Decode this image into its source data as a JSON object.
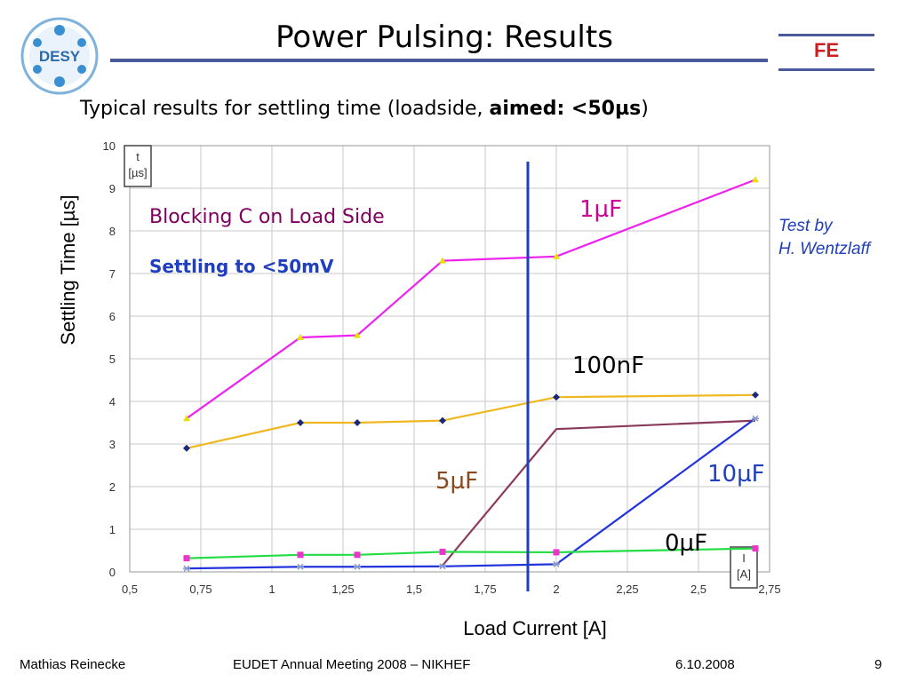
{
  "slide": {
    "title": "Power Pulsing: Results",
    "subtitle_prefix": "Typical results for settling time (loadside, ",
    "subtitle_bold": "aimed: <50µs",
    "subtitle_suffix": ")",
    "logo_text": "DESY",
    "badge_text": "FE",
    "note_blocking": "Blocking C on Load Side",
    "note_settling": "Settling to <50mV",
    "test_by_line1": "Test by",
    "test_by_line2": "H. Wentzlaff",
    "footer_author": "Mathias Reinecke",
    "footer_event": "EUDET Annual Meeting 2008 – NIKHEF",
    "footer_date": "6.10.2008",
    "footer_page": "9"
  },
  "colors": {
    "rule": "#4a5a9a",
    "grid": "#c8c8c8",
    "vertical_marker": "#1f3fbf",
    "badge": "#cc1f1f"
  },
  "chart_data": {
    "type": "line",
    "xlabel": "Load Current [A]",
    "ylabel": "Settling Time [µs]",
    "x_unit_box": [
      "I",
      "[A]"
    ],
    "y_unit_box": [
      "t",
      "[µs]"
    ],
    "xlim": [
      0.5,
      2.75
    ],
    "ylim": [
      0,
      10
    ],
    "x_ticks": [
      "0,5",
      "0,75",
      "1",
      "1,25",
      "1,5",
      "1,75",
      "2",
      "2,25",
      "2,5",
      "2,75"
    ],
    "y_ticks": [
      "0",
      "1",
      "2",
      "3",
      "4",
      "5",
      "6",
      "7",
      "8",
      "9",
      "10"
    ],
    "grid": true,
    "vertical_marker_x": 1.9,
    "series": [
      {
        "name": "1µF",
        "color": "#ee22ee",
        "marker_color": "#e8e000",
        "marker": "triangle",
        "label_color": "#cc0099",
        "points": [
          [
            0.7,
            3.6
          ],
          [
            1.1,
            5.5
          ],
          [
            1.3,
            5.55
          ],
          [
            1.6,
            7.3
          ],
          [
            2.0,
            7.4
          ],
          [
            2.7,
            9.2
          ]
        ]
      },
      {
        "name": "100nF",
        "color": "#f0b820",
        "marker_color": "#1a2a7a",
        "marker": "diamond",
        "label_color": "#000000",
        "points": [
          [
            0.7,
            2.9
          ],
          [
            1.1,
            3.5
          ],
          [
            1.3,
            3.5
          ],
          [
            1.6,
            3.55
          ],
          [
            2.0,
            4.1
          ],
          [
            2.7,
            4.15
          ]
        ]
      },
      {
        "name": "5µF",
        "color": "#8a3a5a",
        "marker_color": "#8a3a5a",
        "marker": "none",
        "label_color": "#8a4a20",
        "points": [
          [
            1.6,
            0.15
          ],
          [
            2.0,
            3.35
          ],
          [
            2.7,
            3.55
          ]
        ]
      },
      {
        "name": "10µF",
        "color": "#2233dd",
        "marker_color": "#8899cc",
        "marker": "star",
        "label_color": "#1f3fbf",
        "points": [
          [
            0.7,
            0.08
          ],
          [
            1.1,
            0.12
          ],
          [
            1.3,
            0.12
          ],
          [
            1.6,
            0.13
          ],
          [
            2.0,
            0.18
          ],
          [
            2.7,
            3.6
          ]
        ]
      },
      {
        "name": "0µF",
        "color": "#22dd44",
        "marker_color": "#ee33cc",
        "marker": "square",
        "label_color": "#000000",
        "points": [
          [
            0.7,
            0.32
          ],
          [
            1.1,
            0.4
          ],
          [
            1.3,
            0.4
          ],
          [
            1.6,
            0.47
          ],
          [
            2.0,
            0.46
          ],
          [
            2.7,
            0.55
          ]
        ]
      }
    ]
  }
}
